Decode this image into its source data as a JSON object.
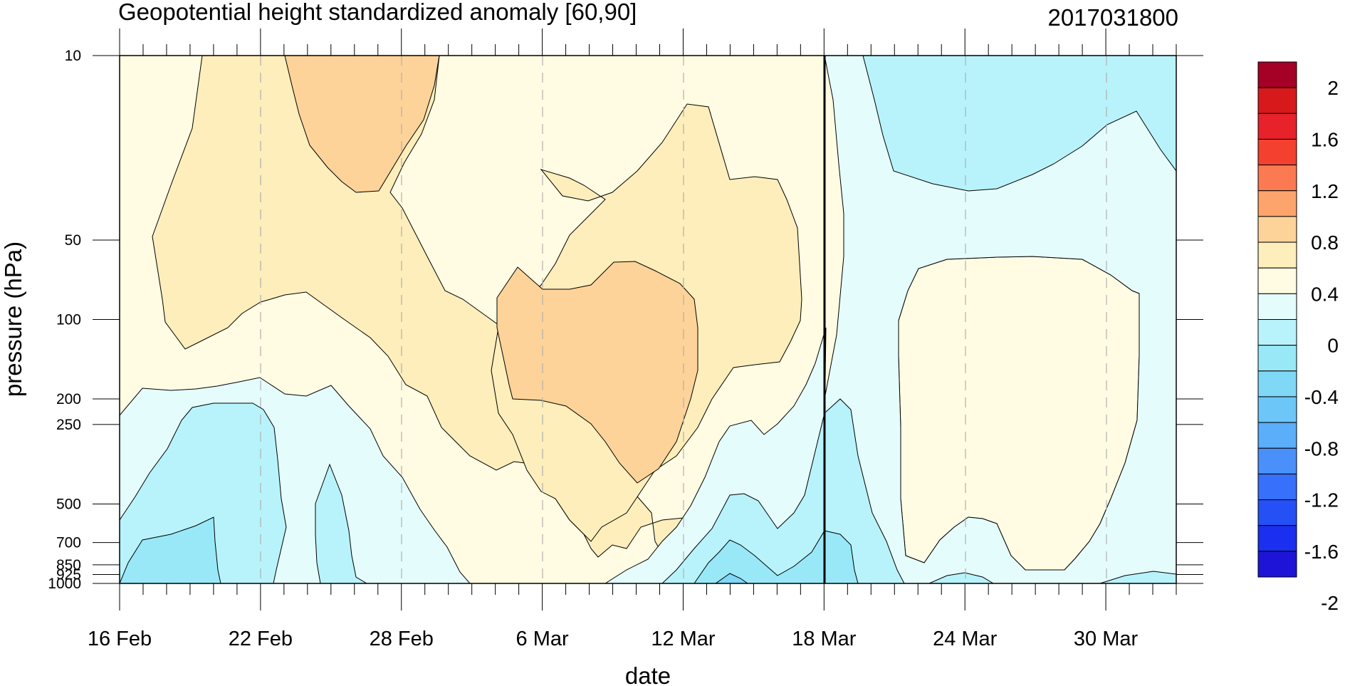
{
  "chart_data": {
    "type": "heatmap",
    "subtype": "filled-contour",
    "title": "Geopotential height standardized anomaly [60,90]",
    "right_title": "2017031800",
    "xlabel": "date",
    "ylabel": "pressure (hPa)",
    "x_tick_labels": [
      "16 Feb",
      "22 Feb",
      "28 Feb",
      "6 Mar",
      "12 Mar",
      "18 Mar",
      "24 Mar",
      "30 Mar"
    ],
    "x_tick_day_offsets": [
      0,
      6,
      12,
      18,
      24,
      30,
      36,
      42
    ],
    "x_range_days": [
      0,
      45
    ],
    "y_ticks": [
      10,
      50,
      100,
      200,
      250,
      500,
      700,
      850,
      925,
      1000
    ],
    "y_tick_labels": [
      "10",
      "50",
      "100",
      "200",
      "250",
      "500",
      "700",
      "850",
      "925",
      "1000"
    ],
    "y_scale": "log",
    "y_reversed": true,
    "y_range": [
      10,
      1000
    ],
    "vertical_marker": "18 Mar",
    "grid": "dashed vertical lines at date ticks",
    "colorbar": {
      "placement": "right",
      "labels": [
        "2",
        "1.6",
        "1.2",
        "0.8",
        "0.4",
        "0",
        "-0.4",
        "-0.8",
        "-1.2",
        "-1.6",
        "-2"
      ],
      "colors": [
        "#a50026",
        "#d7191c",
        "#e8222a",
        "#f4402f",
        "#fb7a52",
        "#fca46c",
        "#fdd39a",
        "#fdeebb",
        "#fffce3",
        "#e5fcfd",
        "#b8f3fb",
        "#99e8f8",
        "#7ed8f6",
        "#6cc6f7",
        "#5aaefa",
        "#4990fb",
        "#3770fb",
        "#2550f6",
        "#1a2ff0",
        "#1e14d8"
      ]
    },
    "anomaly_regions": [
      {
        "level": 0.6,
        "color": "#fdd39a",
        "desc": "upper stratosphere ~20-27 Feb"
      },
      {
        "level": 0.6,
        "color": "#fdd39a",
        "desc": "mid levels ~4-12 Mar"
      },
      {
        "level": 0.2,
        "color": "#fdeebb",
        "desc": "broad positive region mid Feb to mid Mar"
      },
      {
        "level": 0.0,
        "color": "#fffce3",
        "desc": "weak positive region 21-31 Mar mid levels"
      },
      {
        "level": -0.2,
        "color": "#e5fcfd",
        "desc": "weak negative after 18 Mar"
      },
      {
        "level": -0.4,
        "color": "#b8f3fb",
        "desc": "negative 10-40 hPa late Mar"
      },
      {
        "level": -0.6,
        "color": "#99e8f8",
        "desc": "near-surface negative"
      }
    ]
  }
}
